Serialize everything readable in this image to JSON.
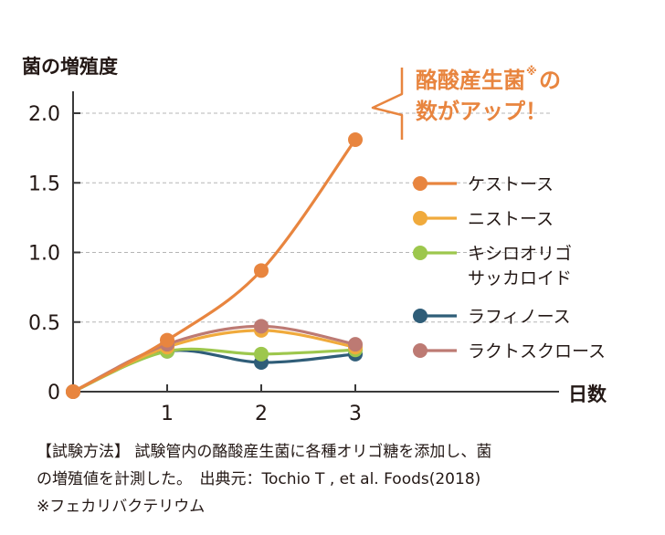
{
  "chart_data": {
    "type": "line",
    "ylabel": "菌の増殖度",
    "xlabel": "日数",
    "x": [
      0,
      1,
      2,
      3
    ],
    "x_ticks": [
      "1",
      "2",
      "3"
    ],
    "y_ticks": [
      "0",
      "0.5",
      "1.0",
      "1.5",
      "2.0"
    ],
    "ylim": [
      0,
      2.0
    ],
    "grid": "horizontal dashed",
    "legend_position": "right",
    "series": [
      {
        "name": "ケストース",
        "color": "#e8853f",
        "values": [
          0,
          0.37,
          0.87,
          1.81
        ]
      },
      {
        "name": "ニストース",
        "color": "#f0aa3c",
        "values": [
          0,
          0.32,
          0.44,
          0.32
        ]
      },
      {
        "name": "キシロオリゴ\nサッカロイド",
        "color": "#9dc74d",
        "values": [
          0,
          0.29,
          0.27,
          0.3
        ]
      },
      {
        "name": "ラフィノース",
        "color": "#2f5d78",
        "values": [
          0,
          0.29,
          0.21,
          0.27
        ]
      },
      {
        "name": "ラクトスクロース",
        "color": "#bd7a73",
        "values": [
          0,
          0.34,
          0.47,
          0.34
        ]
      }
    ],
    "annotation": {
      "line1": "酪酸産生菌",
      "mark": "※",
      "line2_pre": "の",
      "line2": "数がアップ！",
      "color": "#e8853f"
    }
  },
  "caption": {
    "line1": "【試験方法】 試験管内の酪酸産生菌に各種オリゴ糖を添加し、菌",
    "line2": "の増殖値を計測した。　出典元：Tochio T , et al. Foods(2018)",
    "line3": "※フェカリバクテリウム"
  }
}
